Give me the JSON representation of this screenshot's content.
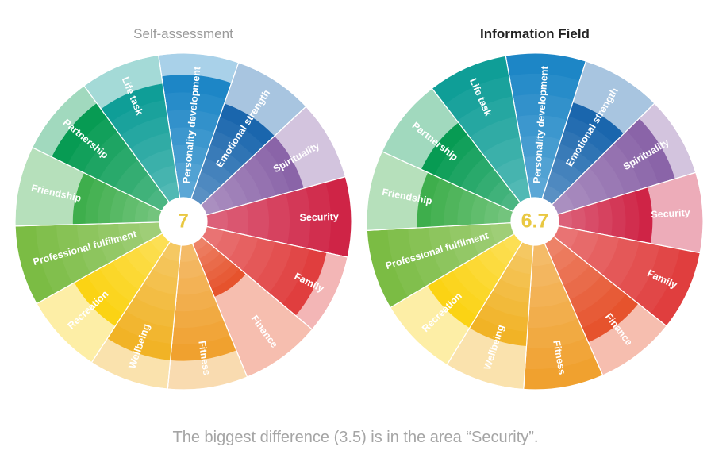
{
  "summary": "The biggest difference (3.5) is in the area “Security”.",
  "chart_data": [
    {
      "type": "radial",
      "title": "Self-assessment",
      "title_color": "#9a9a9a",
      "center_value": "7",
      "scale_max": 10,
      "segments": [
        {
          "label": "Personality development",
          "value": 8.5,
          "color": "#1d86c6"
        },
        {
          "label": "Emotional strength",
          "value": 7,
          "color": "#1a66ad"
        },
        {
          "label": "Spirituality",
          "value": 7,
          "color": "#8a64a8"
        },
        {
          "label": "Security",
          "value": 10,
          "color": "#cf2446"
        },
        {
          "label": "Family",
          "value": 8.5,
          "color": "#e03e3e"
        },
        {
          "label": "Finance",
          "value": 4,
          "color": "#e6532d"
        },
        {
          "label": "Fitness",
          "value": 8,
          "color": "#f0a12f"
        },
        {
          "label": "Wellbeing",
          "value": 8,
          "color": "#f1b326"
        },
        {
          "label": "Recreation",
          "value": 7,
          "color": "#fbd314"
        },
        {
          "label": "Professional fulfilment",
          "value": 10,
          "color": "#7bbc44"
        },
        {
          "label": "Friendship",
          "value": 6,
          "color": "#3eae4c"
        },
        {
          "label": "Partnership",
          "value": 8.5,
          "color": "#079b53"
        },
        {
          "label": "Life task",
          "value": 8,
          "color": "#0f9e97"
        }
      ]
    },
    {
      "type": "radial",
      "title": "Information Field",
      "title_color": "#222222",
      "center_value": "6.7",
      "scale_max": 10,
      "segments": [
        {
          "label": "Personality development",
          "value": 10,
          "color": "#1d86c6"
        },
        {
          "label": "Emotional strength",
          "value": 7,
          "color": "#1a66ad"
        },
        {
          "label": "Spirituality",
          "value": 8.5,
          "color": "#8a64a8"
        },
        {
          "label": "Security",
          "value": 6.5,
          "color": "#cf2446"
        },
        {
          "label": "Family",
          "value": 10,
          "color": "#e03e3e"
        },
        {
          "label": "Finance",
          "value": 7.5,
          "color": "#e6532d"
        },
        {
          "label": "Fitness",
          "value": 10,
          "color": "#f0a12f"
        },
        {
          "label": "Wellbeing",
          "value": 7,
          "color": "#f1b326"
        },
        {
          "label": "Recreation",
          "value": 7,
          "color": "#fbd314"
        },
        {
          "label": "Professional fulfilment",
          "value": 10,
          "color": "#7bbc44"
        },
        {
          "label": "Friendship",
          "value": 6.5,
          "color": "#3eae4c"
        },
        {
          "label": "Partnership",
          "value": 7,
          "color": "#079b53"
        },
        {
          "label": "Life task",
          "value": 10,
          "color": "#0f9e97"
        }
      ]
    }
  ]
}
